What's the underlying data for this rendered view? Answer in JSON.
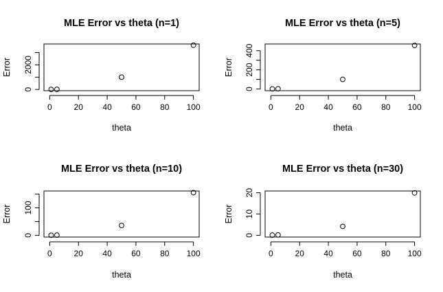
{
  "chart_data": [
    {
      "type": "scatter",
      "title": "MLE Error vs theta (n=1)",
      "xlabel": "theta",
      "ylabel": "Error",
      "x": [
        1,
        5,
        50,
        100
      ],
      "y": [
        5,
        10,
        1000,
        3600
      ],
      "xlim": [
        -4,
        104
      ],
      "ylim": [
        -100,
        3700
      ],
      "xticks": [
        0,
        20,
        40,
        60,
        80,
        100
      ],
      "yticks": [
        0,
        1000,
        2000,
        3000
      ],
      "ytick_labels": [
        "0",
        "",
        "2000",
        ""
      ],
      "marker": "open-circle",
      "grid": false
    },
    {
      "type": "scatter",
      "title": "MLE Error vs theta (n=5)",
      "xlabel": "theta",
      "ylabel": "Error",
      "x": [
        1,
        5,
        50,
        100
      ],
      "y": [
        1,
        2,
        100,
        455
      ],
      "xlim": [
        -4,
        104
      ],
      "ylim": [
        -18,
        470
      ],
      "xticks": [
        0,
        20,
        40,
        60,
        80,
        100
      ],
      "yticks": [
        0,
        100,
        200,
        300,
        400
      ],
      "ytick_labels": [
        "0",
        "",
        "200",
        "",
        "400"
      ],
      "marker": "open-circle",
      "grid": false
    },
    {
      "type": "scatter",
      "title": "MLE Error vs theta (n=10)",
      "xlabel": "theta",
      "ylabel": "Error",
      "x": [
        1,
        5,
        50,
        100
      ],
      "y": [
        0.5,
        1,
        36,
        155
      ],
      "xlim": [
        -4,
        104
      ],
      "ylim": [
        -6,
        161
      ],
      "xticks": [
        0,
        20,
        40,
        60,
        80,
        100
      ],
      "yticks": [
        0,
        50,
        100,
        150
      ],
      "ytick_labels": [
        "0",
        "",
        "100",
        ""
      ],
      "marker": "open-circle",
      "grid": false
    },
    {
      "type": "scatter",
      "title": "MLE Error vs theta (n=30)",
      "xlabel": "theta",
      "ylabel": "Error",
      "x": [
        1,
        5,
        50,
        100
      ],
      "y": [
        0.1,
        0.2,
        4.2,
        19.9
      ],
      "xlim": [
        -4,
        104
      ],
      "ylim": [
        -0.8,
        20.8
      ],
      "xticks": [
        0,
        20,
        40,
        60,
        80,
        100
      ],
      "yticks": [
        0,
        10,
        20
      ],
      "ytick_labels": [
        "0",
        "10",
        "20"
      ],
      "marker": "open-circle",
      "grid": false
    }
  ]
}
